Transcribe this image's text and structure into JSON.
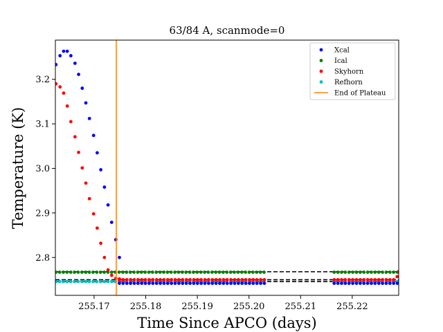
{
  "chart_data": {
    "type": "scatter",
    "title": "63/84 A, scanmode=0",
    "xlabel": "Time Since APCO (days)",
    "ylabel": "Temperature (K)",
    "xlim": [
      255.1625,
      255.229
    ],
    "ylim": [
      2.715,
      3.288
    ],
    "xticks": [
      255.17,
      255.18,
      255.19,
      255.2,
      255.21,
      255.22
    ],
    "xtick_labels": [
      "255.17",
      "255.18",
      "255.19",
      "255.20",
      "255.21",
      "255.22"
    ],
    "yticks": [
      2.8,
      2.9,
      3.0,
      3.1,
      3.2
    ],
    "ytick_labels": [
      "2.8",
      "2.9",
      "3.0",
      "3.1",
      "3.2"
    ],
    "grid": false,
    "legend_position": "top-right",
    "series": [
      {
        "name": "Xcal",
        "color": "#0000ff",
        "marker": "dot",
        "plateau_value": 2.742,
        "points": [
          [
            255.1626,
            3.233
          ],
          [
            255.1634,
            3.253
          ],
          [
            255.1641,
            3.263
          ],
          [
            255.1648,
            3.263
          ],
          [
            255.1655,
            3.253
          ],
          [
            255.1663,
            3.236
          ],
          [
            255.167,
            3.211
          ],
          [
            255.1677,
            3.18
          ],
          [
            255.1684,
            3.147
          ],
          [
            255.1691,
            3.112
          ],
          [
            255.1699,
            3.074
          ],
          [
            255.1706,
            3.035
          ],
          [
            255.1713,
            2.997
          ],
          [
            255.172,
            2.958
          ],
          [
            255.1727,
            2.918
          ],
          [
            255.1734,
            2.879
          ],
          [
            255.1742,
            2.84
          ],
          [
            255.1749,
            2.8
          ]
        ],
        "segments": [
          [
            255.1749,
            255.203
          ],
          [
            255.2165,
            255.229
          ]
        ]
      },
      {
        "name": "Ical",
        "color": "#008000",
        "marker": "dot",
        "plateau_value": 2.767,
        "points": [],
        "segments": [
          [
            255.1626,
            255.203
          ],
          [
            255.2165,
            255.229
          ]
        ]
      },
      {
        "name": "Skyhorn",
        "color": "#ff0000",
        "marker": "dot",
        "plateau_value": 2.75,
        "points": [
          [
            255.1626,
            3.19
          ],
          [
            255.1634,
            3.183
          ],
          [
            255.1641,
            3.169
          ],
          [
            255.1648,
            3.14
          ],
          [
            255.1655,
            3.105
          ],
          [
            255.1663,
            3.071
          ],
          [
            255.167,
            3.036
          ],
          [
            255.1677,
            3.001
          ],
          [
            255.1684,
            2.967
          ],
          [
            255.1691,
            2.932
          ],
          [
            255.1699,
            2.898
          ],
          [
            255.1706,
            2.866
          ],
          [
            255.1713,
            2.832
          ],
          [
            255.172,
            2.8
          ],
          [
            255.1727,
            2.772
          ],
          [
            255.1734,
            2.76
          ],
          [
            255.1742,
            2.753
          ],
          [
            255.1749,
            2.752
          ],
          [
            255.2287,
            2.757
          ],
          [
            255.229,
            2.768
          ]
        ],
        "segments": [
          [
            255.1749,
            255.203
          ],
          [
            255.2165,
            255.2285
          ]
        ]
      },
      {
        "name": "Refhorn",
        "color": "#00bfbf",
        "marker": "dot",
        "plateau_value": 2.746,
        "points": [],
        "segments": [
          [
            255.1626,
            255.203
          ],
          [
            255.2165,
            255.229
          ]
        ]
      },
      {
        "name": "End of Plateau",
        "color": "#ff7f0e",
        "marker": "line",
        "vline_x": 255.1743
      }
    ],
    "dashed_lines": [
      {
        "color": "#000000",
        "y": 2.746
      },
      {
        "color": "#000000",
        "y": 2.75
      },
      {
        "color": "#000000",
        "y": 2.768
      }
    ],
    "point_spacing": 0.00072
  }
}
